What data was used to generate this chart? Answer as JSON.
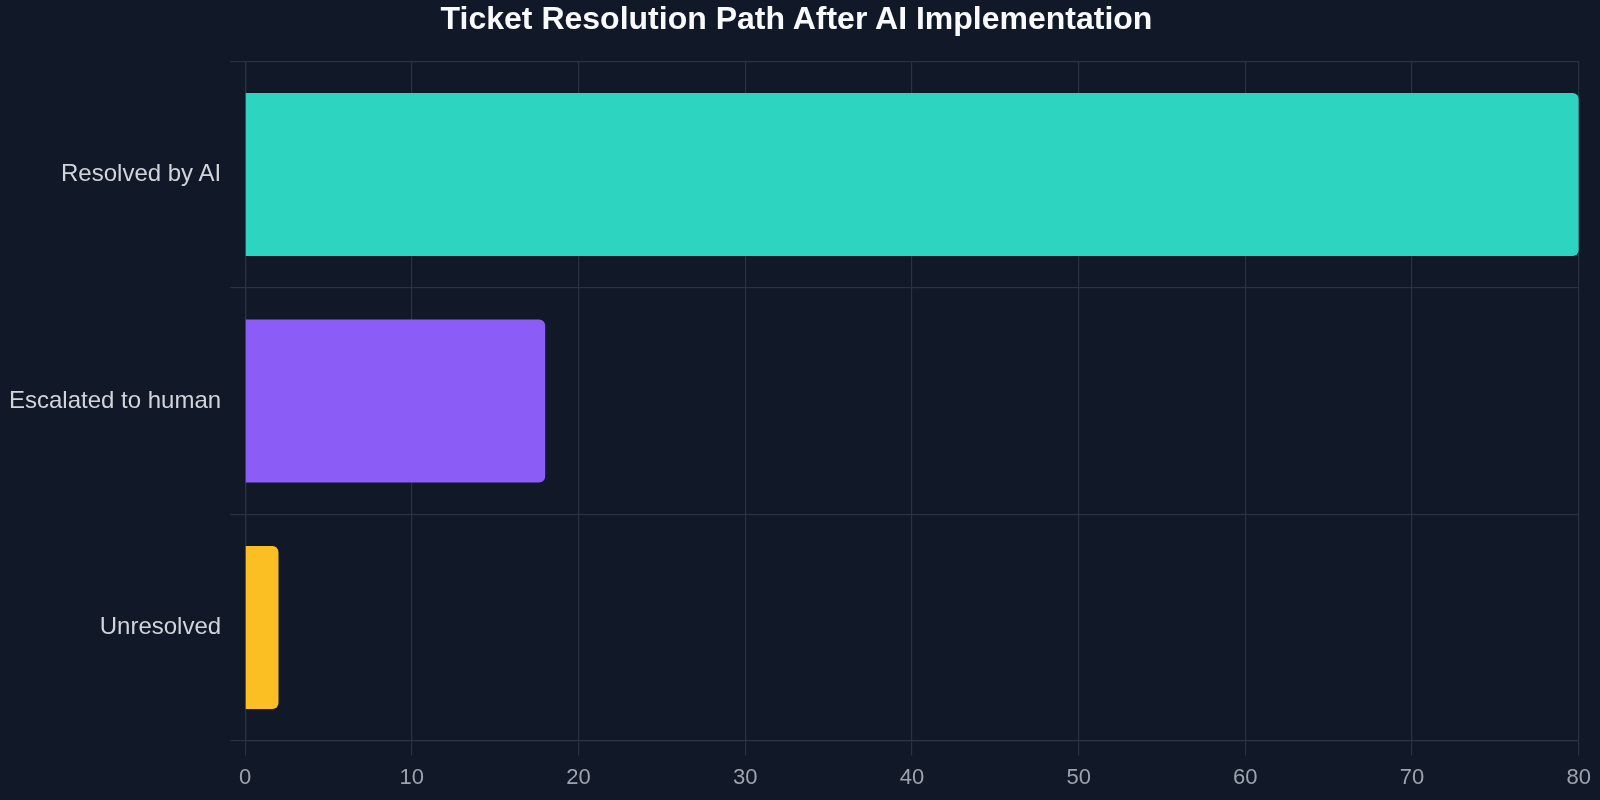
{
  "chart_data": {
    "type": "bar",
    "orientation": "horizontal",
    "title": "Ticket Resolution Path After AI Implementation",
    "categories": [
      "Resolved by AI",
      "Escalated to human",
      "Unresolved"
    ],
    "values": [
      80,
      18,
      2
    ],
    "colors": [
      "#2dd4bf",
      "#8b5cf6",
      "#fbbf24"
    ],
    "xlim": [
      0,
      80
    ],
    "xticks": [
      0,
      10,
      20,
      30,
      40,
      50,
      60,
      70,
      80
    ],
    "grid": true
  }
}
